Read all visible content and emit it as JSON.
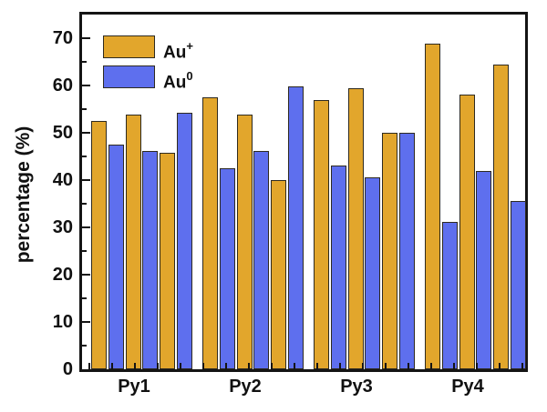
{
  "figure": {
    "background": "#ffffff",
    "axis_color": "#141414",
    "text_color": "#111111"
  },
  "chart_data": {
    "type": "bar",
    "title": "",
    "xlabel": "",
    "ylabel": "percentage (%)",
    "categories": [
      "Py1",
      "Py2",
      "Py3",
      "Py4"
    ],
    "bars_per_category_per_series": 3,
    "series": [
      {
        "name": "Au+",
        "label_base": "Au",
        "label_sup": "+",
        "color": "#E2A62C",
        "values": [
          [
            52.5,
            53.8,
            45.8
          ],
          [
            57.5,
            53.8,
            40.1
          ],
          [
            57.0,
            59.5,
            50.0
          ],
          [
            68.9,
            58.0,
            64.4
          ]
        ]
      },
      {
        "name": "Au0",
        "label_base": "Au",
        "label_sup": "0",
        "color": "#5E6FEE",
        "values": [
          [
            47.5,
            46.2,
            54.2
          ],
          [
            42.5,
            46.2,
            59.9
          ],
          [
            43.0,
            40.5,
            50.0
          ],
          [
            31.1,
            42.0,
            35.6
          ]
        ]
      }
    ],
    "yticks": [
      0,
      10,
      20,
      30,
      40,
      50,
      60,
      70
    ],
    "yticks_minor": [
      5,
      15,
      25,
      35,
      45,
      55,
      65
    ],
    "ylim": [
      0,
      75
    ],
    "grid": false,
    "legend_position": "top-left-inside"
  }
}
